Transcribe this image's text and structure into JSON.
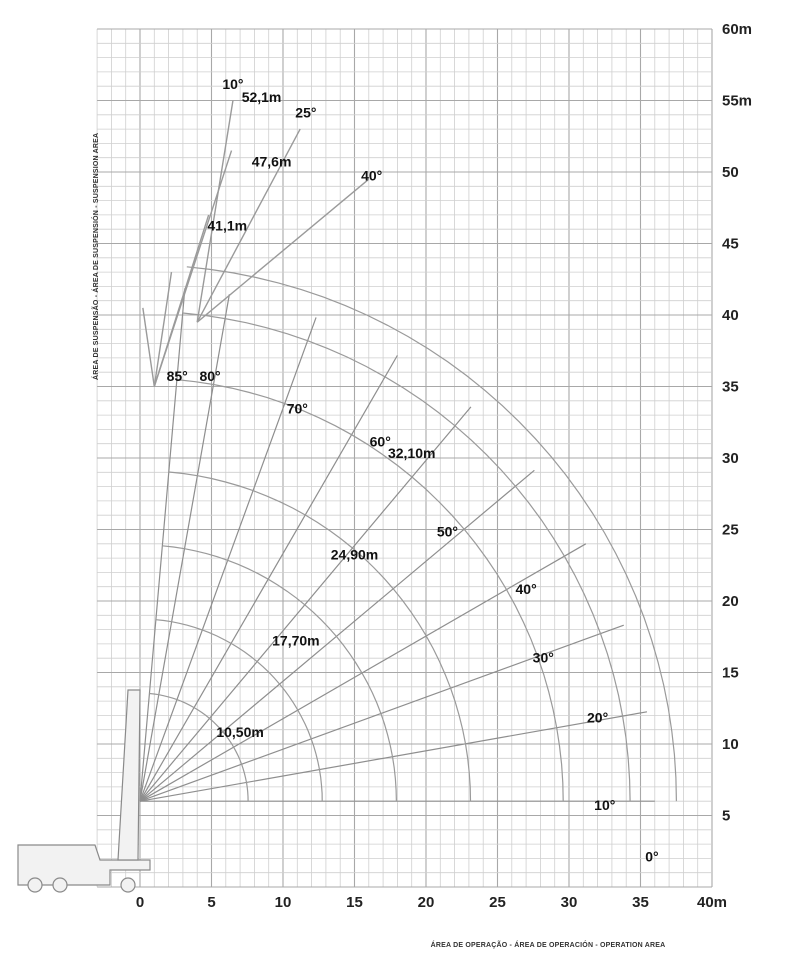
{
  "chart_data": {
    "type": "crane-load-chart",
    "xlabel": "ÁREA DE OPERAÇÃO - ÁREA DE OPERACIÓN - OPERATION AREA",
    "ylabel": "ÁREA DE SUSPENSÃO - ÁREA DE SUSPENSIÓN - SUSPENSION AREA",
    "xlim": [
      -3,
      40
    ],
    "ylim": [
      0,
      60
    ],
    "grid": true,
    "x_ticks": [
      "0",
      "5",
      "10",
      "15",
      "20",
      "25",
      "30",
      "35",
      "40m"
    ],
    "y_ticks": [
      "5",
      "10",
      "15",
      "20",
      "25",
      "30",
      "35",
      "40",
      "45",
      "50",
      "55m",
      "60m"
    ],
    "boom_lengths": [
      {
        "label": "10,50m",
        "length": 10.5
      },
      {
        "label": "17,70m",
        "length": 17.7
      },
      {
        "label": "24,90m",
        "length": 24.9
      },
      {
        "label": "32,10m",
        "length": 32.1
      },
      {
        "label": "41,1m",
        "length": 41.1
      },
      {
        "label": "47,6m",
        "length": 47.6
      },
      {
        "label": "52,1m",
        "length": 52.1
      }
    ],
    "boom_angles": [
      {
        "label": "0°",
        "angle": 0
      },
      {
        "label": "10°",
        "angle": 10
      },
      {
        "label": "20°",
        "angle": 20
      },
      {
        "label": "30°",
        "angle": 30
      },
      {
        "label": "40°",
        "angle": 40
      },
      {
        "label": "50°",
        "angle": 50
      },
      {
        "label": "60°",
        "angle": 60
      },
      {
        "label": "70°",
        "angle": 70
      },
      {
        "label": "80°",
        "angle": 80
      },
      {
        "label": "85°",
        "angle": 85
      }
    ],
    "jib_angles": [
      {
        "label": "10°",
        "angle": 10
      },
      {
        "label": "25°",
        "angle": 25
      },
      {
        "label": "40°",
        "angle": 40
      }
    ],
    "annotations": [
      {
        "text": "10°",
        "x": 6.5,
        "y": 55.8
      },
      {
        "text": "52,1m",
        "x": 8.5,
        "y": 54.9
      },
      {
        "text": "25°",
        "x": 11.6,
        "y": 53.8
      },
      {
        "text": "47,6m",
        "x": 9.2,
        "y": 50.4
      },
      {
        "text": "40°",
        "x": 16.2,
        "y": 49.4
      },
      {
        "text": "41,1m",
        "x": 6.1,
        "y": 45.9
      },
      {
        "text": "85°",
        "x": 2.6,
        "y": 35.4
      },
      {
        "text": "80°",
        "x": 4.9,
        "y": 35.4
      },
      {
        "text": "70°",
        "x": 11.0,
        "y": 33.1
      },
      {
        "text": "60°",
        "x": 16.8,
        "y": 30.8
      },
      {
        "text": "32,10m",
        "x": 19.0,
        "y": 30.0
      },
      {
        "text": "50°",
        "x": 21.5,
        "y": 24.5
      },
      {
        "text": "24,90m",
        "x": 15.0,
        "y": 22.9
      },
      {
        "text": "40°",
        "x": 27.0,
        "y": 20.5
      },
      {
        "text": "30°",
        "x": 28.2,
        "y": 15.7
      },
      {
        "text": "17,70m",
        "x": 10.9,
        "y": 16.9
      },
      {
        "text": "20°",
        "x": 32.0,
        "y": 11.5
      },
      {
        "text": "10,50m",
        "x": 7.0,
        "y": 10.5
      },
      {
        "text": "10°",
        "x": 32.5,
        "y": 5.4
      },
      {
        "text": "0°",
        "x": 35.8,
        "y": 1.8
      }
    ]
  }
}
